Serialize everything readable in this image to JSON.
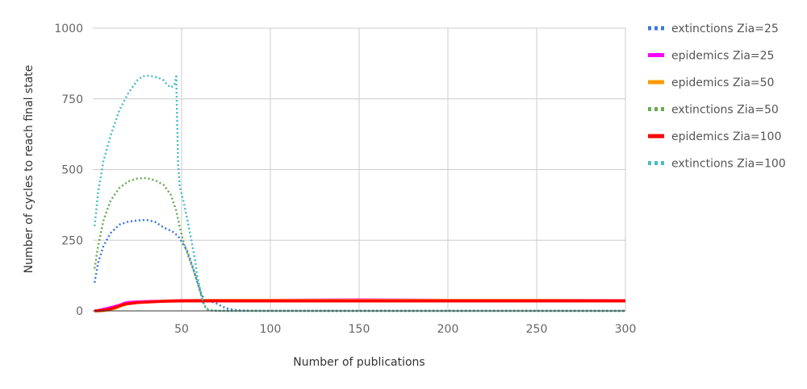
{
  "chart_data": {
    "type": "line",
    "xlabel": "Number of publications",
    "ylabel": "Number of cycles to reach final state",
    "xlim": [
      0,
      300
    ],
    "ylim": [
      0,
      1000
    ],
    "x_ticks": [
      "50",
      "100",
      "150",
      "200",
      "250",
      "300"
    ],
    "y_ticks": [
      "0",
      "250",
      "500",
      "750",
      "1000"
    ],
    "grid": true,
    "legend_position": "right",
    "series": [
      {
        "name": "extinctions Zia=25",
        "color": "#3c78d8",
        "style": "dotted",
        "points": [
          [
            1,
            100
          ],
          [
            3,
            170
          ],
          [
            6,
            230
          ],
          [
            10,
            275
          ],
          [
            15,
            305
          ],
          [
            20,
            316
          ],
          [
            25,
            320
          ],
          [
            30,
            322
          ],
          [
            35,
            315
          ],
          [
            40,
            295
          ],
          [
            45,
            280
          ],
          [
            48,
            265
          ],
          [
            50,
            245
          ],
          [
            53,
            215
          ],
          [
            56,
            160
          ],
          [
            59,
            100
          ],
          [
            61,
            60
          ],
          [
            63,
            40
          ],
          [
            66,
            35
          ],
          [
            70,
            25
          ],
          [
            73,
            15
          ],
          [
            76,
            8
          ],
          [
            80,
            3
          ],
          [
            85,
            1
          ],
          [
            100,
            0
          ],
          [
            150,
            0
          ],
          [
            200,
            0
          ],
          [
            250,
            0
          ],
          [
            300,
            0
          ]
        ]
      },
      {
        "name": "epidemics Zia=25",
        "color": "#ff00ff",
        "style": "solid",
        "points": [
          [
            1,
            0
          ],
          [
            3,
            1
          ],
          [
            6,
            6
          ],
          [
            9,
            10
          ],
          [
            12,
            15
          ],
          [
            15,
            20
          ],
          [
            18,
            28
          ],
          [
            20,
            30
          ],
          [
            22,
            31
          ],
          [
            25,
            32
          ],
          [
            30,
            33
          ],
          [
            40,
            35
          ],
          [
            50,
            37
          ],
          [
            60,
            38
          ],
          [
            80,
            38
          ],
          [
            100,
            38
          ],
          [
            150,
            39
          ],
          [
            200,
            38
          ],
          [
            250,
            38
          ],
          [
            300,
            37
          ]
        ]
      },
      {
        "name": "epidemics Zia=50",
        "color": "#ff9900",
        "style": "solid",
        "points": [
          [
            1,
            0
          ],
          [
            5,
            0
          ],
          [
            8,
            2
          ],
          [
            10,
            5
          ],
          [
            13,
            10
          ],
          [
            16,
            18
          ],
          [
            19,
            24
          ],
          [
            22,
            27
          ],
          [
            25,
            29
          ],
          [
            30,
            31
          ],
          [
            40,
            35
          ],
          [
            50,
            36
          ],
          [
            60,
            37
          ],
          [
            80,
            37
          ],
          [
            100,
            37
          ],
          [
            150,
            37
          ],
          [
            200,
            37
          ],
          [
            250,
            37
          ],
          [
            300,
            36
          ]
        ]
      },
      {
        "name": "extinctions Zia=50",
        "color": "#6aa84f",
        "style": "dotted",
        "points": [
          [
            1,
            150
          ],
          [
            3,
            230
          ],
          [
            6,
            320
          ],
          [
            10,
            390
          ],
          [
            15,
            435
          ],
          [
            20,
            458
          ],
          [
            25,
            468
          ],
          [
            30,
            470
          ],
          [
            35,
            462
          ],
          [
            40,
            445
          ],
          [
            44,
            410
          ],
          [
            47,
            355
          ],
          [
            49,
            295
          ],
          [
            51,
            245
          ],
          [
            54,
            190
          ],
          [
            57,
            140
          ],
          [
            60,
            80
          ],
          [
            62,
            30
          ],
          [
            64,
            8
          ],
          [
            67,
            1
          ],
          [
            75,
            0
          ],
          [
            100,
            0
          ],
          [
            150,
            0
          ],
          [
            200,
            0
          ],
          [
            250,
            0
          ],
          [
            300,
            0
          ]
        ]
      },
      {
        "name": "epidemics Zia=100",
        "color": "#ff0000",
        "style": "solid",
        "points": [
          [
            1,
            0
          ],
          [
            4,
            1
          ],
          [
            7,
            3
          ],
          [
            10,
            7
          ],
          [
            13,
            13
          ],
          [
            16,
            20
          ],
          [
            19,
            25
          ],
          [
            22,
            27
          ],
          [
            25,
            29
          ],
          [
            30,
            31
          ],
          [
            40,
            34
          ],
          [
            50,
            35
          ],
          [
            60,
            35
          ],
          [
            80,
            35
          ],
          [
            100,
            35
          ],
          [
            150,
            35
          ],
          [
            200,
            35
          ],
          [
            250,
            35
          ],
          [
            300,
            35
          ]
        ]
      },
      {
        "name": "extinctions Zia=100",
        "color": "#46bdc6",
        "style": "dotted",
        "points": [
          [
            1,
            300
          ],
          [
            3,
            420
          ],
          [
            6,
            530
          ],
          [
            10,
            620
          ],
          [
            15,
            710
          ],
          [
            20,
            770
          ],
          [
            25,
            815
          ],
          [
            28,
            830
          ],
          [
            32,
            832
          ],
          [
            37,
            825
          ],
          [
            40,
            815
          ],
          [
            42,
            800
          ],
          [
            44,
            790
          ],
          [
            46,
            800
          ],
          [
            47,
            830
          ],
          [
            48,
            520
          ],
          [
            49,
            440
          ],
          [
            51,
            390
          ],
          [
            54,
            300
          ],
          [
            57,
            200
          ],
          [
            59,
            120
          ],
          [
            61,
            60
          ],
          [
            63,
            15
          ],
          [
            65,
            3
          ],
          [
            70,
            0
          ],
          [
            100,
            0
          ],
          [
            150,
            0
          ],
          [
            200,
            0
          ],
          [
            250,
            0
          ],
          [
            300,
            0
          ]
        ]
      }
    ]
  }
}
